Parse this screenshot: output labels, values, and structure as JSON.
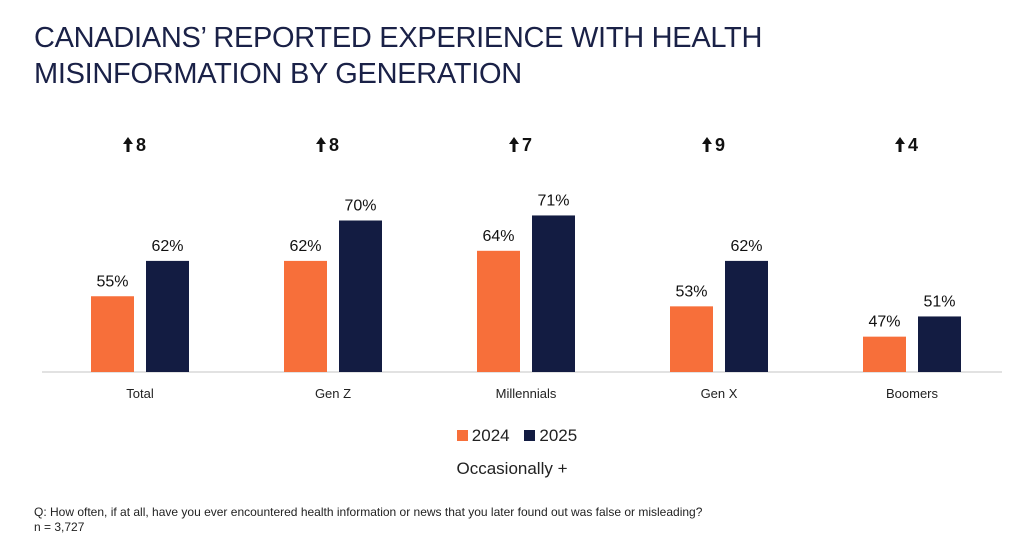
{
  "title": "CANADIANS’ REPORTED EXPERIENCE WITH HEALTH MISINFORMATION BY GENERATION",
  "chart_data": {
    "type": "bar",
    "title": "CANADIANS’ REPORTED EXPERIENCE WITH HEALTH MISINFORMATION BY GENERATION",
    "categories": [
      "Total",
      "Gen Z",
      "Millennials",
      "Gen X",
      "Boomers"
    ],
    "series": [
      {
        "name": "2024",
        "values": [
          55,
          62,
          64,
          53,
          47
        ],
        "color": "#f76f3a"
      },
      {
        "name": "2025",
        "values": [
          62,
          70,
          71,
          62,
          51
        ],
        "color": "#131c42"
      }
    ],
    "changes": [
      "8",
      "8",
      "7",
      "9",
      "4"
    ],
    "change_icon": "arrow-up-icon",
    "ylim": [
      40,
      75
    ],
    "grid": false,
    "legend": "bottom",
    "xlabel": "Occasionally +"
  },
  "footnote": {
    "question": "Q: How often, if at all, have you ever encountered health information or news that you later found out was false or misleading?",
    "n": "n = 3,727"
  }
}
